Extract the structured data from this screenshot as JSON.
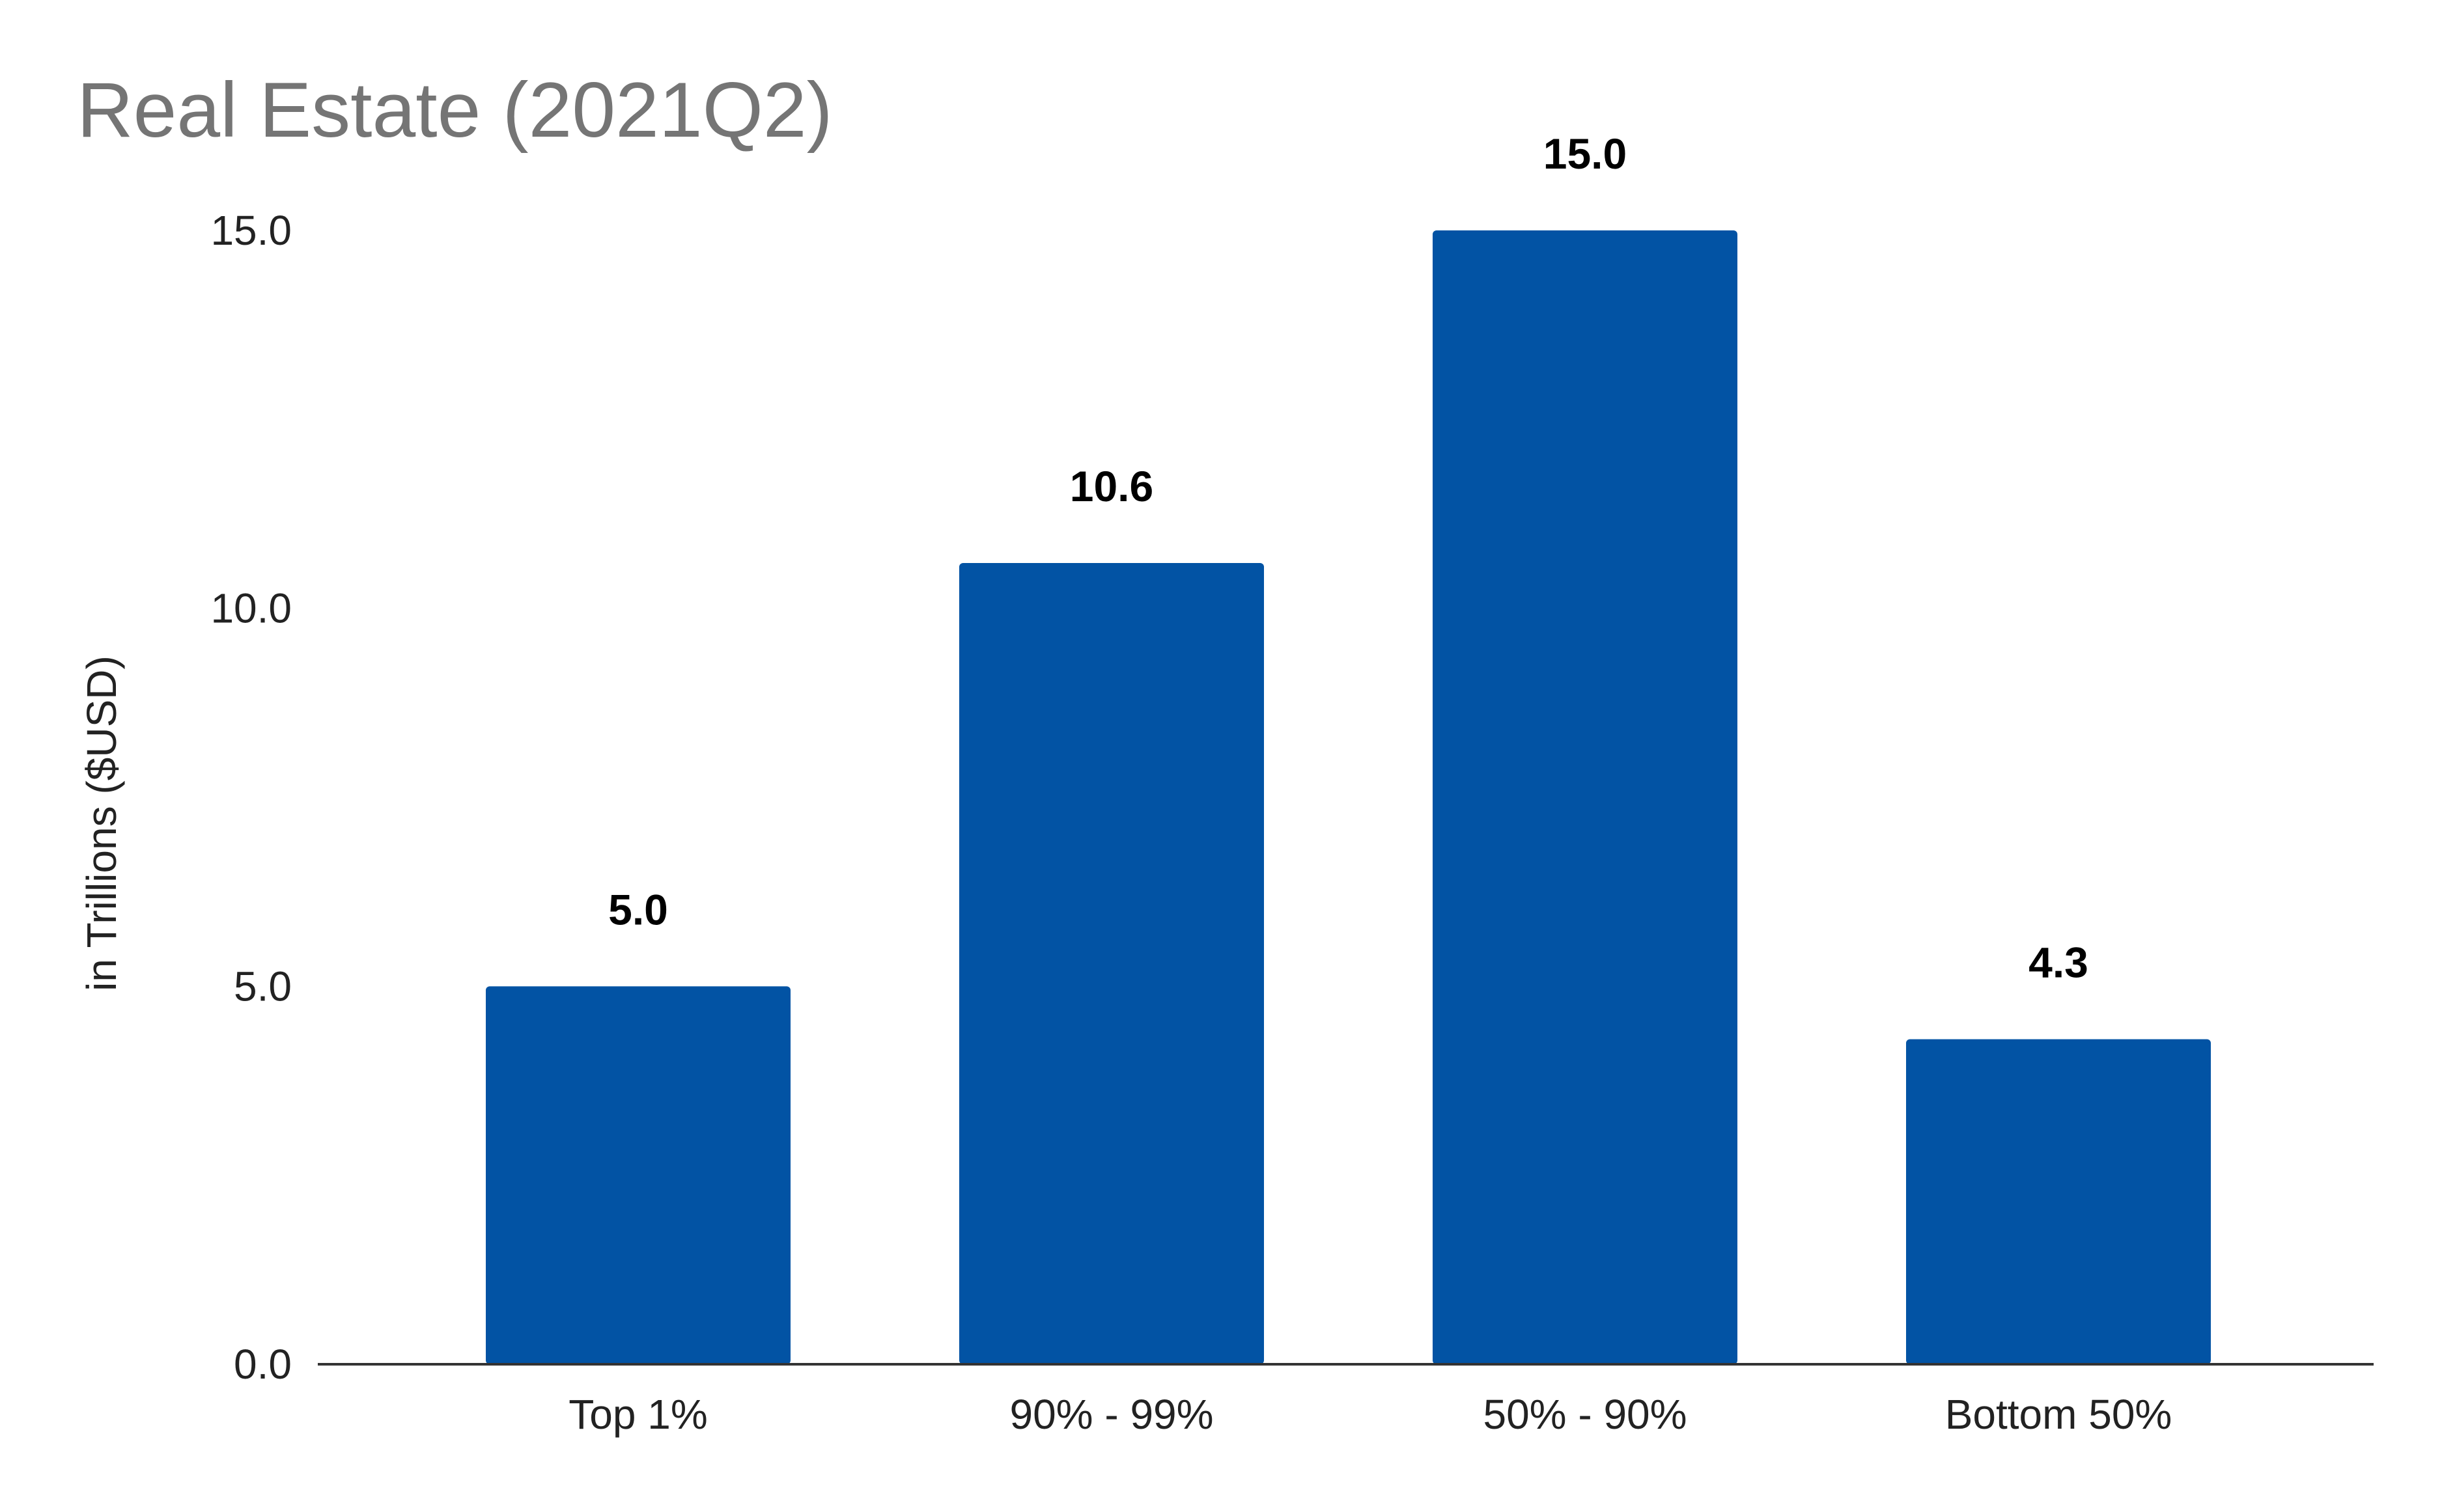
{
  "chart_data": {
    "type": "bar",
    "title": "Real Estate (2021Q2)",
    "xlabel": "",
    "ylabel": "in Trillions ($USD)",
    "categories": [
      "Top 1%",
      "90% - 99%",
      "50% - 90%",
      "Bottom 50%"
    ],
    "values": [
      5.0,
      10.6,
      15.0,
      4.3
    ],
    "value_labels": [
      "5.0",
      "10.6",
      "15.0",
      "4.3"
    ],
    "ylim": [
      0,
      15
    ],
    "yticks": [
      0,
      5,
      10,
      15
    ],
    "ytick_labels": [
      "0.0",
      "5.0",
      "10.0",
      "15.0"
    ],
    "grid": false,
    "legend": "none",
    "colors": {
      "bar": "#0253A4",
      "title": "#757575",
      "text": "#222222",
      "value_label": "#000000",
      "axis": "#333333"
    }
  }
}
